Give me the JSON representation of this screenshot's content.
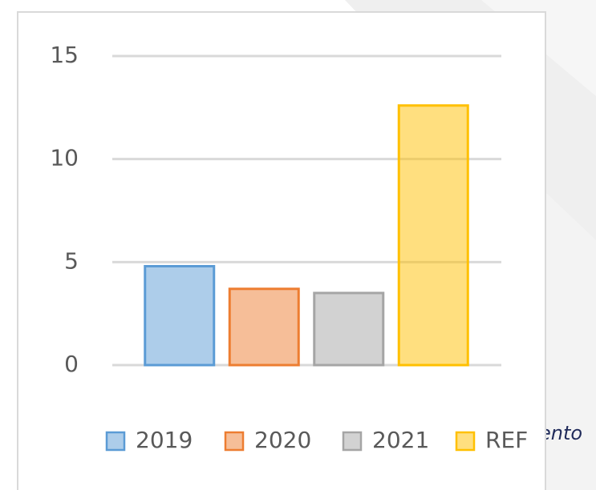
{
  "chart_data": {
    "type": "bar",
    "categories": [
      "2019",
      "2020",
      "2021",
      "REF"
    ],
    "values": [
      4.8,
      3.7,
      3.5,
      12.6
    ],
    "colors": [
      "#5b9bd5",
      "#ed7d31",
      "#a5a5a5",
      "#ffc000"
    ],
    "ylim": [
      0,
      15
    ],
    "yticks": [
      0,
      5,
      10,
      15
    ],
    "grid": true,
    "background_text": "ento"
  }
}
